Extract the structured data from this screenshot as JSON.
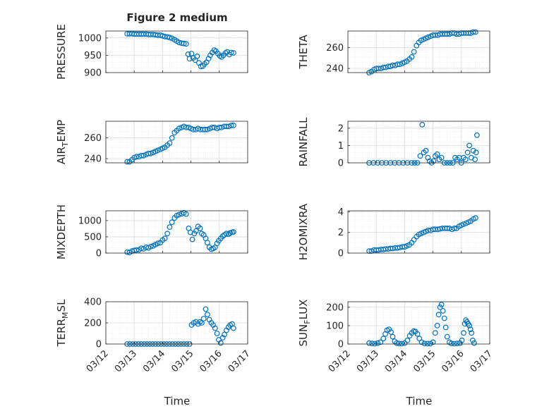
{
  "figure": {
    "title": "Figure 2 medium",
    "time_label": "Time",
    "x_ticks": [
      "03/12",
      "03/13",
      "03/14",
      "03/15",
      "03/16",
      "03/17"
    ]
  },
  "colors": {
    "marker": "#0072BD",
    "axis": "#262626",
    "grid": "#dcdcdc",
    "minor_grid": "#ebebeb"
  },
  "chart_data": [
    {
      "type": "scatter",
      "title": "Figure 2 medium",
      "ylabel": "PRESSURE",
      "ylim": [
        900,
        1020
      ],
      "yticks": [
        900,
        950,
        1000
      ],
      "xlim": [
        0,
        5
      ],
      "x": [
        0.75,
        0.83,
        0.92,
        1.0,
        1.08,
        1.17,
        1.25,
        1.33,
        1.42,
        1.5,
        1.58,
        1.67,
        1.75,
        1.83,
        1.92,
        2.0,
        2.08,
        2.17,
        2.25,
        2.33,
        2.42,
        2.5,
        2.58,
        2.67,
        2.75,
        2.83,
        2.9,
        2.95,
        3.02,
        3.08,
        3.15,
        3.22,
        3.28,
        3.35,
        3.42,
        3.48,
        3.55,
        3.62,
        3.68,
        3.75,
        3.82,
        3.88,
        3.95,
        4.02,
        4.08,
        4.15,
        4.22,
        4.28,
        4.35,
        4.42,
        4.5
      ],
      "y": [
        1012,
        1012,
        1012,
        1011,
        1011,
        1011,
        1011,
        1011,
        1011,
        1010,
        1010,
        1010,
        1009,
        1008,
        1008,
        1006,
        1004,
        1003,
        1001,
        999,
        995,
        991,
        987,
        985,
        984,
        983,
        953,
        940,
        955,
        942,
        936,
        947,
        928,
        918,
        919,
        925,
        930,
        940,
        950,
        958,
        965,
        962,
        955,
        948,
        945,
        950,
        957,
        960,
        952,
        958,
        957
      ]
    },
    {
      "type": "scatter",
      "ylabel": "THETA",
      "ylim": [
        236,
        276
      ],
      "yticks": [
        240,
        260
      ],
      "xlim": [
        0,
        5
      ],
      "x": [
        0.75,
        0.83,
        0.92,
        1.0,
        1.08,
        1.17,
        1.25,
        1.33,
        1.42,
        1.5,
        1.58,
        1.67,
        1.75,
        1.83,
        1.92,
        2.0,
        2.08,
        2.17,
        2.25,
        2.33,
        2.42,
        2.5,
        2.58,
        2.67,
        2.75,
        2.83,
        2.92,
        3.0,
        3.08,
        3.17,
        3.25,
        3.33,
        3.42,
        3.5,
        3.58,
        3.67,
        3.75,
        3.83,
        3.92,
        4.0,
        4.08,
        4.17,
        4.25,
        4.33,
        4.42,
        4.5
      ],
      "y": [
        236,
        237,
        239,
        240,
        240,
        240,
        241,
        241,
        242,
        242,
        243,
        243,
        244,
        244,
        245,
        246,
        247,
        249,
        251,
        256,
        262,
        265,
        267,
        268,
        269,
        270,
        271,
        272,
        272,
        272,
        273,
        273,
        273,
        273,
        273,
        274,
        274,
        273,
        273,
        274,
        274,
        274,
        274,
        274,
        275,
        275
      ]
    },
    {
      "type": "scatter",
      "ylabel": "AIR_TEMP",
      "ylim": [
        236,
        276
      ],
      "yticks": [
        240,
        260
      ],
      "xlim": [
        0,
        5
      ],
      "x": [
        0.75,
        0.83,
        0.92,
        1.0,
        1.08,
        1.17,
        1.25,
        1.33,
        1.42,
        1.5,
        1.58,
        1.67,
        1.75,
        1.83,
        1.92,
        2.0,
        2.08,
        2.17,
        2.25,
        2.33,
        2.42,
        2.5,
        2.58,
        2.67,
        2.75,
        2.83,
        2.92,
        3.0,
        3.08,
        3.17,
        3.25,
        3.33,
        3.42,
        3.5,
        3.58,
        3.67,
        3.75,
        3.83,
        3.92,
        4.0,
        4.08,
        4.17,
        4.25,
        4.33,
        4.42,
        4.5
      ],
      "y": [
        237,
        237,
        239,
        241,
        242,
        242,
        243,
        243,
        244,
        245,
        245,
        246,
        247,
        248,
        249,
        250,
        251,
        253,
        255,
        260,
        265,
        267,
        269,
        270,
        271,
        270,
        270,
        269,
        268,
        268,
        269,
        268,
        268,
        268,
        268,
        269,
        270,
        270,
        269,
        270,
        270,
        271,
        271,
        271,
        272,
        272
      ]
    },
    {
      "type": "scatter",
      "ylabel": "RAINFALL",
      "ylim": [
        0,
        2.4
      ],
      "yticks": [
        0,
        1,
        2
      ],
      "xlim": [
        0,
        5
      ],
      "x": [
        0.75,
        0.9,
        1.05,
        1.2,
        1.35,
        1.5,
        1.65,
        1.8,
        1.95,
        2.1,
        2.25,
        2.35,
        2.45,
        2.55,
        2.62,
        2.68,
        2.75,
        2.82,
        2.88,
        2.95,
        3.02,
        3.08,
        3.15,
        3.22,
        3.3,
        3.4,
        3.5,
        3.6,
        3.7,
        3.78,
        3.85,
        3.92,
        4.0,
        4.08,
        4.15,
        4.22,
        4.28,
        4.35,
        4.42,
        4.48,
        4.52,
        4.55
      ],
      "y": [
        0,
        0,
        0,
        0,
        0,
        0,
        0,
        0,
        0,
        0,
        0,
        0,
        0,
        0.4,
        2.2,
        0.6,
        0.7,
        0.3,
        0.1,
        0.0,
        0.1,
        0.4,
        0.5,
        0.2,
        0.3,
        0,
        0,
        0,
        0,
        0.3,
        0.2,
        0.3,
        0,
        0.3,
        0.2,
        0.6,
        1.0,
        0.3,
        0.7,
        0.2,
        0.6,
        1.6
      ]
    },
    {
      "type": "scatter",
      "ylabel": "MIXDEPTH",
      "ylim": [
        0,
        1300
      ],
      "yticks": [
        0,
        500,
        1000
      ],
      "xlim": [
        0,
        5
      ],
      "x": [
        0.75,
        0.83,
        0.92,
        1.0,
        1.08,
        1.17,
        1.25,
        1.33,
        1.42,
        1.5,
        1.58,
        1.67,
        1.75,
        1.83,
        1.92,
        2.0,
        2.08,
        2.17,
        2.25,
        2.33,
        2.42,
        2.5,
        2.58,
        2.67,
        2.75,
        2.83,
        2.92,
        2.98,
        3.05,
        3.12,
        3.18,
        3.25,
        3.32,
        3.38,
        3.45,
        3.52,
        3.58,
        3.65,
        3.72,
        3.78,
        3.85,
        3.92,
        3.98,
        4.05,
        4.12,
        4.18,
        4.25,
        4.32,
        4.38,
        4.45,
        4.5
      ],
      "y": [
        30,
        20,
        60,
        80,
        90,
        100,
        150,
        130,
        180,
        160,
        200,
        220,
        260,
        300,
        320,
        400,
        450,
        600,
        800,
        950,
        1080,
        1150,
        1180,
        1210,
        1240,
        1200,
        760,
        640,
        420,
        600,
        680,
        820,
        760,
        600,
        560,
        450,
        320,
        180,
        120,
        140,
        180,
        300,
        380,
        450,
        520,
        560,
        600,
        580,
        620,
        640,
        650
      ]
    },
    {
      "type": "scatter",
      "ylabel": "H2OMIXRA",
      "ylim": [
        0,
        4.1
      ],
      "yticks": [
        0,
        2,
        4
      ],
      "xlim": [
        0,
        5
      ],
      "x": [
        0.75,
        0.83,
        0.92,
        1.0,
        1.08,
        1.17,
        1.25,
        1.33,
        1.42,
        1.5,
        1.58,
        1.67,
        1.75,
        1.83,
        1.92,
        2.0,
        2.08,
        2.17,
        2.25,
        2.33,
        2.42,
        2.5,
        2.58,
        2.67,
        2.75,
        2.83,
        2.92,
        3.0,
        3.08,
        3.17,
        3.25,
        3.33,
        3.42,
        3.5,
        3.58,
        3.67,
        3.75,
        3.83,
        3.92,
        4.0,
        4.08,
        4.17,
        4.25,
        4.33,
        4.42,
        4.5
      ],
      "y": [
        0.2,
        0.2,
        0.3,
        0.3,
        0.3,
        0.35,
        0.35,
        0.4,
        0.4,
        0.45,
        0.45,
        0.5,
        0.5,
        0.55,
        0.6,
        0.6,
        0.7,
        0.8,
        1.0,
        1.3,
        1.6,
        1.8,
        1.9,
        2.0,
        2.1,
        2.2,
        2.2,
        2.3,
        2.3,
        2.3,
        2.35,
        2.4,
        2.4,
        2.4,
        2.4,
        2.3,
        2.4,
        2.4,
        2.6,
        2.7,
        2.8,
        2.9,
        3.0,
        3.1,
        3.3,
        3.4
      ]
    },
    {
      "type": "scatter",
      "ylabel": "TERR_MSL",
      "ylim": [
        0,
        400
      ],
      "yticks": [
        0,
        200,
        400
      ],
      "xlim": [
        0,
        5
      ],
      "x": [
        0.75,
        0.85,
        0.95,
        1.05,
        1.15,
        1.25,
        1.35,
        1.45,
        1.55,
        1.65,
        1.75,
        1.85,
        1.95,
        2.05,
        2.15,
        2.25,
        2.35,
        2.45,
        2.55,
        2.65,
        2.75,
        2.85,
        2.95,
        3.02,
        3.1,
        3.18,
        3.25,
        3.32,
        3.38,
        3.45,
        3.52,
        3.58,
        3.65,
        3.72,
        3.78,
        3.85,
        3.92,
        3.98,
        4.05,
        4.12,
        4.18,
        4.25,
        4.32,
        4.38,
        4.45,
        4.5
      ],
      "y": [
        0,
        0,
        0,
        0,
        0,
        0,
        0,
        0,
        0,
        0,
        0,
        0,
        0,
        0,
        0,
        0,
        0,
        0,
        0,
        0,
        0,
        0,
        0,
        180,
        200,
        210,
        190,
        210,
        200,
        240,
        330,
        280,
        230,
        200,
        180,
        150,
        100,
        40,
        10,
        60,
        90,
        130,
        160,
        180,
        190,
        150
      ]
    },
    {
      "type": "scatter",
      "ylabel": "SUN_FLUX",
      "ylim": [
        0,
        230
      ],
      "yticks": [
        0,
        100,
        200
      ],
      "xlim": [
        0,
        5
      ],
      "x": [
        0.75,
        0.85,
        0.95,
        1.05,
        1.15,
        1.25,
        1.32,
        1.38,
        1.45,
        1.52,
        1.58,
        1.65,
        1.72,
        1.8,
        1.9,
        2.0,
        2.1,
        2.18,
        2.25,
        2.32,
        2.38,
        2.45,
        2.52,
        2.6,
        2.7,
        2.8,
        2.9,
        3.0,
        3.08,
        3.15,
        3.2,
        3.25,
        3.3,
        3.35,
        3.4,
        3.45,
        3.5,
        3.58,
        3.65,
        3.75,
        3.85,
        3.95,
        4.02,
        4.08,
        4.12,
        4.16,
        4.2,
        4.24,
        4.28,
        4.32,
        4.36,
        4.4,
        4.45
      ],
      "y": [
        5,
        3,
        2,
        5,
        10,
        30,
        55,
        75,
        80,
        65,
        40,
        15,
        5,
        3,
        2,
        5,
        20,
        45,
        60,
        70,
        68,
        55,
        30,
        10,
        3,
        2,
        2,
        10,
        60,
        100,
        160,
        200,
        215,
        180,
        140,
        90,
        40,
        10,
        3,
        2,
        3,
        5,
        20,
        60,
        110,
        130,
        120,
        110,
        100,
        80,
        60,
        20,
        5
      ]
    }
  ]
}
